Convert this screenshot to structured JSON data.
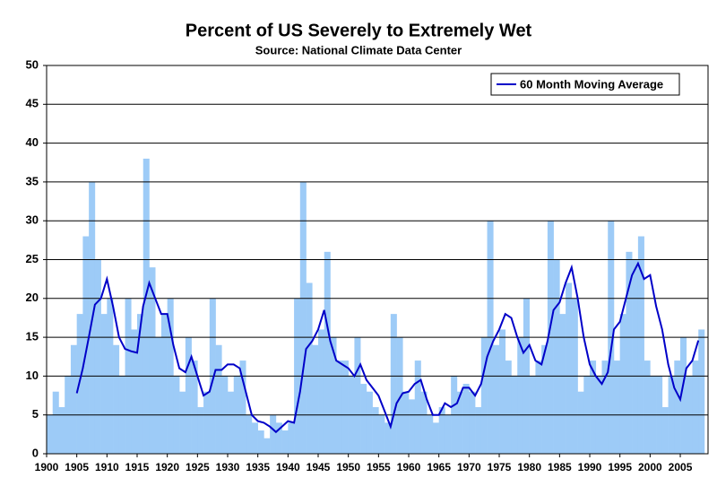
{
  "chart_data": {
    "type": "bar",
    "title": "Percent of US Severely to Extremely Wet",
    "subtitle": "Source:  National Climate Data Center",
    "xlim": [
      1900,
      2009.6
    ],
    "xticks": [
      1900,
      1905,
      1910,
      1915,
      1920,
      1925,
      1930,
      1935,
      1940,
      1945,
      1950,
      1955,
      1960,
      1965,
      1970,
      1975,
      1980,
      1985,
      1990,
      1995,
      2000,
      2005
    ],
    "ylim": [
      0,
      50
    ],
    "yticks": [
      0,
      5,
      10,
      15,
      20,
      25,
      30,
      35,
      40,
      45,
      50
    ],
    "grid": true,
    "legend": "top-right",
    "x": [
      1900,
      1901,
      1902,
      1903,
      1904,
      1905,
      1906,
      1907,
      1908,
      1909,
      1910,
      1911,
      1912,
      1913,
      1914,
      1915,
      1916,
      1917,
      1918,
      1919,
      1920,
      1921,
      1922,
      1923,
      1924,
      1925,
      1926,
      1927,
      1928,
      1929,
      1930,
      1931,
      1932,
      1933,
      1934,
      1935,
      1936,
      1937,
      1938,
      1939,
      1940,
      1941,
      1942,
      1943,
      1944,
      1945,
      1946,
      1947,
      1948,
      1949,
      1950,
      1951,
      1952,
      1953,
      1954,
      1955,
      1956,
      1957,
      1958,
      1959,
      1960,
      1961,
      1962,
      1963,
      1964,
      1965,
      1966,
      1967,
      1968,
      1969,
      1970,
      1971,
      1972,
      1973,
      1974,
      1975,
      1976,
      1977,
      1978,
      1979,
      1980,
      1981,
      1982,
      1983,
      1984,
      1985,
      1986,
      1987,
      1988,
      1989,
      1990,
      1991,
      1992,
      1993,
      1994,
      1995,
      1996,
      1997,
      1998,
      1999,
      2000,
      2001,
      2002,
      2003,
      2004,
      2005,
      2006,
      2007,
      2008
    ],
    "bars": {
      "color": "#9dcbf7",
      "values": [
        5,
        8,
        6,
        10,
        14,
        18,
        28,
        35,
        25,
        18,
        20,
        14,
        10,
        20,
        16,
        18,
        38,
        24,
        15,
        18,
        20,
        10,
        8,
        15,
        12,
        6,
        8,
        20,
        14,
        10,
        8,
        10,
        12,
        5,
        4,
        3,
        2,
        5,
        4,
        3,
        4,
        20,
        35,
        22,
        14,
        16,
        26,
        15,
        12,
        12,
        10,
        15,
        9,
        8,
        6,
        5,
        4,
        18,
        15,
        8,
        7,
        12,
        8,
        5,
        4,
        6,
        5,
        10,
        8,
        9,
        8,
        6,
        15,
        30,
        14,
        16,
        12,
        10,
        15,
        20,
        10,
        12,
        14,
        30,
        25,
        18,
        22,
        20,
        8,
        10,
        12,
        10,
        12,
        30,
        12,
        18,
        26,
        25,
        28,
        12,
        10,
        10,
        6,
        10,
        12,
        15,
        10,
        12,
        16
      ]
    },
    "series": [
      {
        "name": "60 Month Moving Average",
        "color": "#0000c8",
        "x": [
          1905,
          1906,
          1907,
          1908,
          1909,
          1910,
          1911,
          1912,
          1913,
          1914,
          1915,
          1916,
          1917,
          1918,
          1919,
          1920,
          1921,
          1922,
          1923,
          1924,
          1925,
          1926,
          1927,
          1928,
          1929,
          1930,
          1931,
          1932,
          1933,
          1934,
          1935,
          1936,
          1937,
          1938,
          1939,
          1940,
          1941,
          1942,
          1943,
          1944,
          1945,
          1946,
          1947,
          1948,
          1949,
          1950,
          1951,
          1952,
          1953,
          1954,
          1955,
          1956,
          1957,
          1958,
          1959,
          1960,
          1961,
          1962,
          1963,
          1964,
          1965,
          1966,
          1967,
          1968,
          1969,
          1970,
          1971,
          1972,
          1973,
          1974,
          1975,
          1976,
          1977,
          1978,
          1979,
          1980,
          1981,
          1982,
          1983,
          1984,
          1985,
          1986,
          1987,
          1988,
          1989,
          1990,
          1991,
          1992,
          1993,
          1994,
          1995,
          1996,
          1997,
          1998,
          1999,
          2000,
          2001,
          2002,
          2003,
          2004,
          2005,
          2006,
          2007,
          2008
        ],
        "values": [
          7.8,
          11,
          15,
          19.2,
          20,
          22.5,
          19,
          15,
          13.5,
          13.2,
          13,
          19,
          22,
          20,
          18,
          18,
          14,
          11,
          10.5,
          12.5,
          10,
          7.5,
          8,
          10.8,
          10.8,
          11.5,
          11.5,
          11,
          8,
          5,
          4.2,
          4,
          3.5,
          2.8,
          3.5,
          4.2,
          4,
          8,
          13.5,
          14.5,
          16,
          18.5,
          14.5,
          12,
          11.5,
          11,
          10,
          11.5,
          9.5,
          8.5,
          7.5,
          5.5,
          3.5,
          6.5,
          7.8,
          8,
          9,
          9.5,
          7,
          5,
          5,
          6.5,
          6,
          6.5,
          8.5,
          8.5,
          7.5,
          9,
          12.5,
          14.5,
          16,
          18,
          17.5,
          15,
          13,
          14,
          12,
          11.5,
          14.5,
          18.5,
          19.5,
          22,
          24,
          20,
          15,
          11.5,
          10,
          9,
          10.5,
          16,
          17,
          20,
          23,
          24.5,
          22.5,
          23,
          19,
          16,
          11.5,
          8.5,
          7,
          11,
          12,
          14.6
        ]
      }
    ]
  }
}
